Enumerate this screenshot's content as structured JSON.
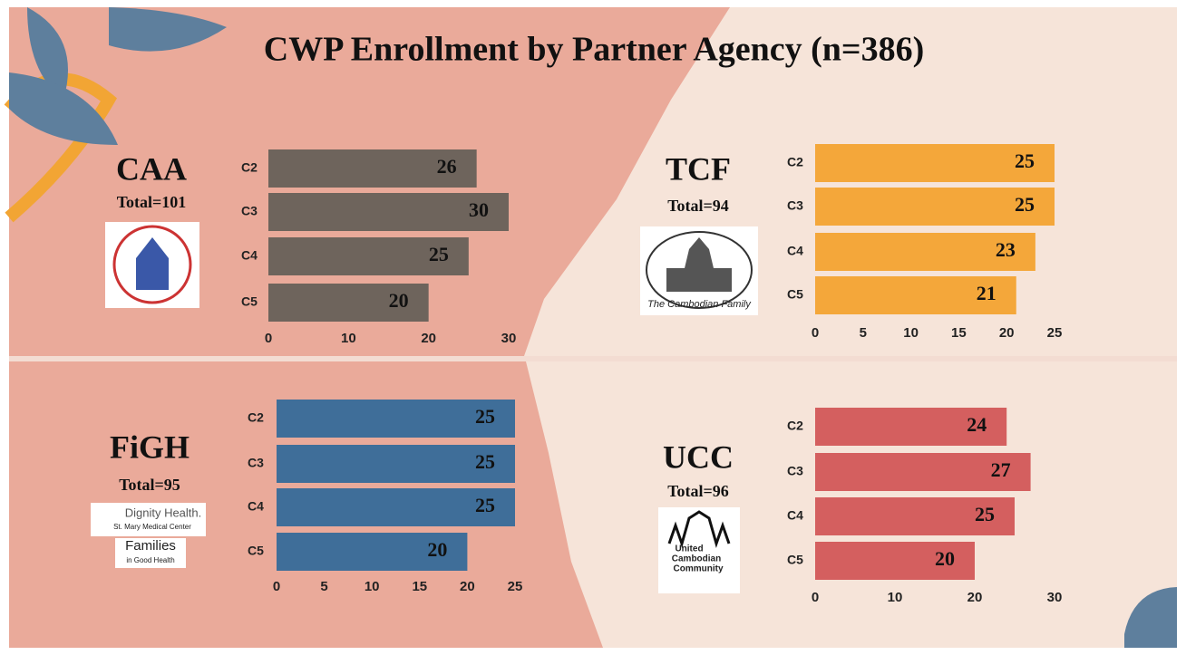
{
  "title": "CWP Enrollment by Partner Agency (n=386)",
  "chart_data": [
    {
      "type": "bar",
      "orientation": "horizontal",
      "title": "CAA",
      "subtitle": "Total=101",
      "categories": [
        "C2",
        "C3",
        "C4",
        "C5"
      ],
      "values": [
        26,
        30,
        25,
        20
      ],
      "color": "#6e645c",
      "xlim": [
        0,
        30
      ],
      "xticks": [
        0,
        10,
        20,
        30
      ]
    },
    {
      "type": "bar",
      "orientation": "horizontal",
      "title": "TCF",
      "subtitle": "Total=94",
      "categories": [
        "C2",
        "C3",
        "C4",
        "C5"
      ],
      "values": [
        25,
        25,
        23,
        21
      ],
      "color": "#f4a73a",
      "xlim": [
        0,
        25
      ],
      "xticks": [
        0,
        5,
        10,
        15,
        20,
        25
      ],
      "logo_text": [
        "The Cambodian Family"
      ]
    },
    {
      "type": "bar",
      "orientation": "horizontal",
      "title": "FiGH",
      "subtitle": "Total=95",
      "categories": [
        "C2",
        "C3",
        "C4",
        "C5"
      ],
      "values": [
        25,
        25,
        25,
        20
      ],
      "color": "#3f6e99",
      "xlim": [
        0,
        25
      ],
      "xticks": [
        0,
        5,
        10,
        15,
        20,
        25
      ],
      "logo_text": [
        "Dignity Health.",
        "St. Mary Medical Center",
        "Families",
        "in Good Health"
      ]
    },
    {
      "type": "bar",
      "orientation": "horizontal",
      "title": "UCC",
      "subtitle": "Total=96",
      "categories": [
        "C2",
        "C3",
        "C4",
        "C5"
      ],
      "values": [
        24,
        27,
        25,
        20
      ],
      "color": "#d45f5f",
      "xlim": [
        0,
        30
      ],
      "xticks": [
        0,
        10,
        20,
        30
      ],
      "logo_text": [
        "United",
        "Cambodian",
        "Community"
      ]
    }
  ]
}
